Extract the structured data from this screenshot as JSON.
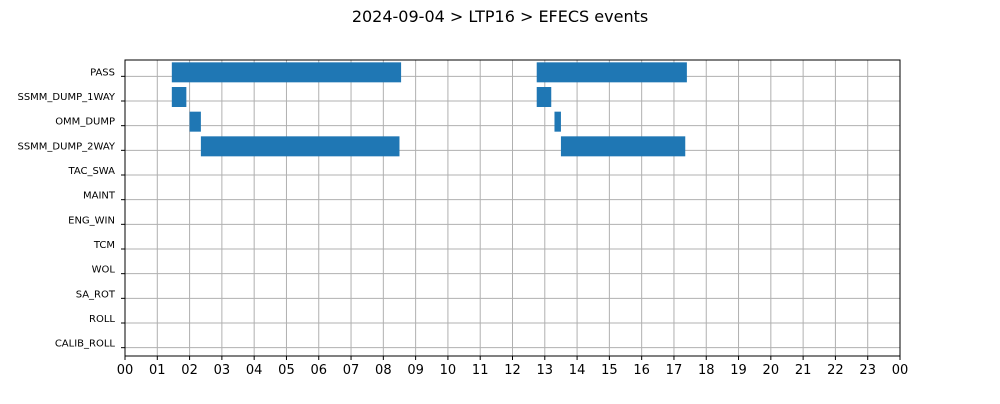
{
  "chart_data": {
    "type": "gantt",
    "title": "2024-09-04 > LTP16 > EFECS events",
    "xlabel": "",
    "ylabel": "",
    "x_unit": "hour of day",
    "xlim": [
      0,
      24
    ],
    "x_ticks": [
      "00",
      "01",
      "02",
      "03",
      "04",
      "05",
      "06",
      "07",
      "08",
      "09",
      "10",
      "11",
      "12",
      "13",
      "14",
      "15",
      "16",
      "17",
      "18",
      "19",
      "20",
      "21",
      "22",
      "23",
      "00"
    ],
    "categories": [
      "PASS",
      "SSMM_DUMP_1WAY",
      "OMM_DUMP",
      "SSMM_DUMP_2WAY",
      "TAC_SWA",
      "MAINT",
      "ENG_WIN",
      "TCM",
      "WOL",
      "SA_ROT",
      "ROLL",
      "CALIB_ROLL"
    ],
    "grid": true,
    "bar_color": "#1f77b4",
    "events": [
      {
        "category": "PASS",
        "start": 1.45,
        "end": 8.55
      },
      {
        "category": "PASS",
        "start": 12.75,
        "end": 17.4
      },
      {
        "category": "SSMM_DUMP_1WAY",
        "start": 1.45,
        "end": 1.9
      },
      {
        "category": "SSMM_DUMP_1WAY",
        "start": 12.75,
        "end": 13.2
      },
      {
        "category": "OMM_DUMP",
        "start": 2.0,
        "end": 2.35
      },
      {
        "category": "OMM_DUMP",
        "start": 13.3,
        "end": 13.5
      },
      {
        "category": "SSMM_DUMP_2WAY",
        "start": 2.35,
        "end": 8.5
      },
      {
        "category": "SSMM_DUMP_2WAY",
        "start": 13.5,
        "end": 17.35
      }
    ]
  }
}
